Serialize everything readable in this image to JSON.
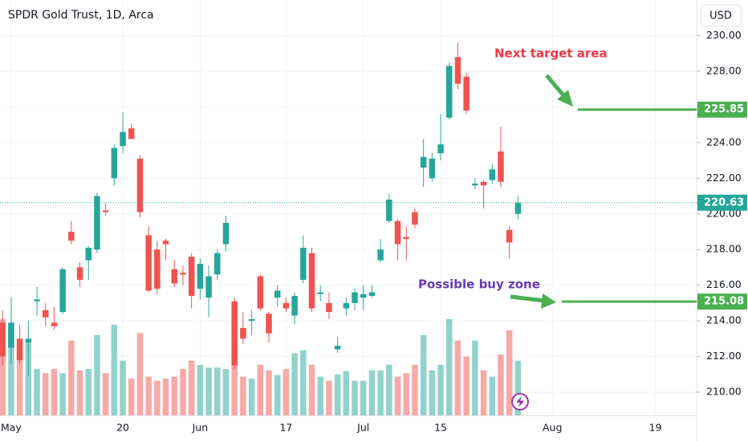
{
  "chart_data": {
    "type": "candlestick",
    "title": "SPDR Gold Trust, 1D, Arca",
    "currency": "USD",
    "up_color": "#26a69a",
    "down_color": "#ef5350",
    "volume_up_color": "#92d2cc",
    "volume_down_color": "#f7a9a7",
    "grid": true,
    "x": [
      0,
      1,
      2,
      3,
      4,
      5,
      6,
      7,
      8,
      9,
      10,
      11,
      12,
      13,
      14,
      15,
      16,
      17,
      18,
      19,
      20,
      21,
      22,
      23,
      24,
      25,
      26,
      27,
      28,
      29,
      30,
      31,
      32,
      33,
      34,
      35,
      36,
      37,
      38,
      39,
      40,
      41,
      42,
      43,
      44,
      45,
      46,
      47,
      48,
      49,
      50,
      51,
      52,
      53,
      54,
      55,
      56,
      57,
      58,
      59,
      60
    ],
    "open": [
      213.9,
      212.5,
      213.0,
      212.8,
      215.1,
      214.6,
      213.9,
      214.5,
      219.0,
      217.0,
      217.4,
      218.0,
      220.2,
      222.0,
      223.8,
      224.8,
      223.1,
      218.8,
      218.0,
      218.5,
      216.9,
      216.7,
      217.6,
      215.8,
      215.3,
      216.6,
      218.3,
      215.1,
      213.6,
      214.0,
      216.5,
      214.4,
      215.3,
      215.0,
      214.3,
      216.3,
      217.8,
      215.5,
      215.0,
      212.4,
      214.7,
      215.0,
      215.3,
      215.4,
      217.4,
      219.6,
      219.6,
      218.7,
      220.1,
      222.6,
      222.0,
      223.4,
      225.4,
      228.8,
      227.7,
      221.6,
      221.8,
      221.9,
      223.5,
      219.1,
      220.0
    ],
    "high": [
      214.6,
      215.3,
      213.8,
      214.0,
      215.9,
      215.0,
      214.8,
      217.0,
      219.6,
      217.3,
      218.2,
      221.2,
      220.6,
      223.9,
      225.7,
      225.1,
      223.3,
      219.3,
      218.5,
      218.6,
      217.4,
      217.1,
      217.8,
      217.5,
      217.1,
      218.0,
      219.9,
      215.3,
      214.5,
      214.6,
      216.6,
      214.5,
      216.0,
      215.3,
      215.6,
      218.8,
      218.1,
      216.0,
      215.6,
      213.1,
      215.3,
      215.8,
      216.0,
      216.0,
      218.6,
      221.1,
      219.7,
      219.3,
      220.3,
      224.2,
      223.4,
      225.6,
      228.5,
      229.6,
      227.9,
      222.0,
      221.9,
      222.8,
      224.9,
      219.3,
      221.0
    ],
    "low": [
      211.5,
      211.6,
      211.6,
      210.9,
      214.3,
      213.7,
      213.5,
      214.4,
      218.3,
      215.9,
      216.3,
      217.8,
      219.9,
      221.6,
      223.4,
      224.2,
      219.8,
      215.6,
      215.5,
      217.4,
      215.9,
      216.0,
      214.7,
      215.2,
      214.2,
      216.3,
      217.9,
      211.3,
      212.7,
      213.2,
      214.6,
      212.8,
      214.8,
      214.5,
      213.8,
      216.1,
      214.5,
      215.1,
      214.1,
      212.2,
      214.3,
      214.6,
      214.6,
      215.3,
      217.3,
      219.5,
      217.4,
      217.4,
      219.2,
      221.5,
      221.8,
      223.0,
      225.3,
      227.0,
      225.6,
      221.4,
      220.3,
      221.7,
      221.5,
      217.5,
      219.7
    ],
    "close": [
      212.0,
      213.9,
      211.8,
      213.0,
      215.2,
      214.2,
      213.7,
      216.9,
      218.5,
      216.3,
      218.1,
      221.0,
      220.1,
      223.7,
      224.6,
      224.2,
      220.1,
      215.7,
      215.8,
      218.3,
      216.1,
      216.6,
      215.4,
      217.2,
      216.5,
      217.8,
      219.5,
      211.5,
      213.0,
      214.1,
      214.7,
      213.3,
      215.7,
      214.7,
      215.4,
      218.1,
      214.7,
      215.6,
      214.5,
      212.6,
      215.0,
      215.6,
      215.5,
      215.6,
      218.0,
      220.8,
      218.3,
      218.6,
      219.4,
      223.2,
      223.1,
      223.9,
      228.3,
      227.3,
      225.8,
      221.7,
      221.6,
      222.5,
      221.8,
      218.4,
      220.63
    ],
    "volume": [
      13.9,
      13.3,
      10.2,
      10.8,
      6.7,
      6.1,
      6.7,
      6.1,
      10.8,
      6.5,
      6.7,
      11.6,
      6.1,
      13.1,
      7.9,
      5.3,
      11.9,
      5.6,
      5.0,
      5.3,
      5.6,
      6.7,
      7.9,
      7.3,
      6.9,
      6.9,
      6.7,
      7.3,
      5.6,
      5.3,
      7.3,
      6.5,
      5.8,
      6.7,
      9.0,
      9.4,
      7.3,
      5.6,
      5.0,
      5.9,
      6.4,
      5.0,
      5.0,
      6.5,
      6.5,
      7.3,
      5.6,
      6.1,
      7.3,
      11.6,
      6.5,
      7.3,
      13.9,
      10.8,
      8.5,
      10.8,
      6.5,
      5.6,
      8.8,
      12.3,
      7.9
    ],
    "xlim": [
      -0.3,
      80.8
    ],
    "xticks": [
      {
        "value": 1,
        "label": "May"
      },
      {
        "value": 14,
        "label": "20"
      },
      {
        "value": 23,
        "label": "Jun"
      },
      {
        "value": 33,
        "label": "17"
      },
      {
        "value": 42,
        "label": "Jul"
      },
      {
        "value": 51,
        "label": "15"
      },
      {
        "value": 64,
        "label": "Aug"
      },
      {
        "value": 76,
        "label": "19"
      }
    ],
    "ylim": [
      208.7,
      232
    ],
    "yticks": [
      {
        "value": 210,
        "label": "210.00"
      },
      {
        "value": 212,
        "label": "212.00"
      },
      {
        "value": 214,
        "label": "214.00"
      },
      {
        "value": 216,
        "label": "216.00"
      },
      {
        "value": 218,
        "label": "218.00"
      },
      {
        "value": 220,
        "label": "220.00"
      },
      {
        "value": 222,
        "label": "222.00"
      },
      {
        "value": 224,
        "label": "224.00"
      },
      {
        "value": 226,
        "label": "226.00"
      },
      {
        "value": 228,
        "label": "228.00"
      },
      {
        "value": 230,
        "label": "230.00"
      }
    ],
    "y2lim": [
      0,
      60
    ],
    "levels": [
      {
        "value": 225.85,
        "color": "#4caf50"
      },
      {
        "value": 215.08,
        "color": "#4caf50"
      }
    ],
    "annotations": [
      {
        "text": "Next target area",
        "color": "#f23645"
      },
      {
        "text": "Possible buy zone",
        "color": "#673ab7"
      }
    ]
  }
}
